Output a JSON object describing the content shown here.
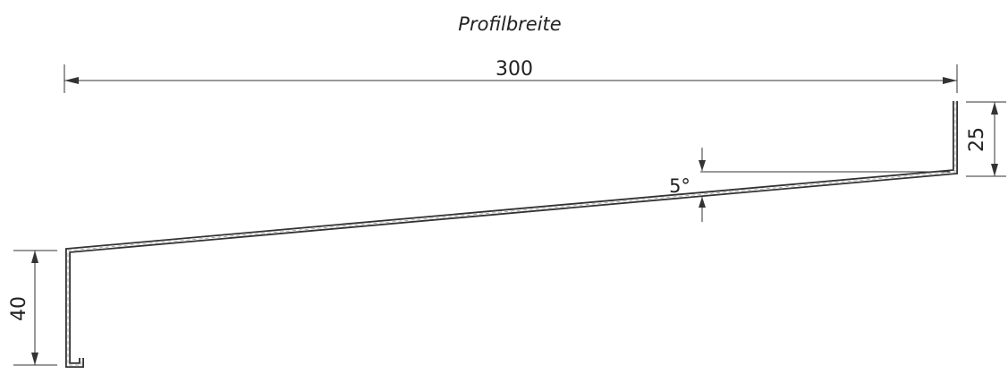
{
  "title": "Profilbreite",
  "dimensions": {
    "width": "300",
    "top_flange": "25",
    "angle": "5°",
    "bottom_flange": "40"
  }
}
